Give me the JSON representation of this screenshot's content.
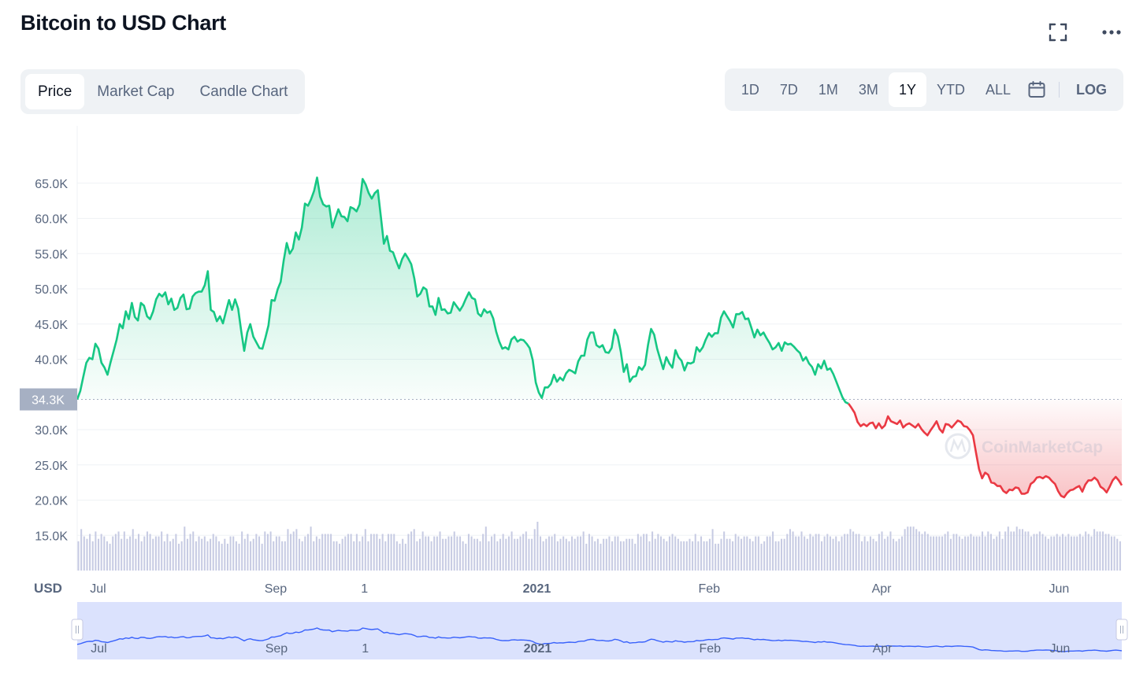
{
  "header": {
    "title": "Bitcoin to USD Chart",
    "fullscreen_icon": "fullscreen-icon",
    "more_icon": "more-dots-icon"
  },
  "tabs": [
    {
      "label": "Price",
      "active": true
    },
    {
      "label": "Market Cap",
      "active": false
    },
    {
      "label": "Candle Chart",
      "active": false
    }
  ],
  "ranges": {
    "items": [
      {
        "label": "1D",
        "active": false
      },
      {
        "label": "7D",
        "active": false
      },
      {
        "label": "1M",
        "active": false
      },
      {
        "label": "3M",
        "active": false
      },
      {
        "label": "1Y",
        "active": true
      },
      {
        "label": "YTD",
        "active": false
      },
      {
        "label": "ALL",
        "active": false
      }
    ],
    "calendar_icon": "calendar-icon",
    "log_label": "LOG"
  },
  "chart_data": {
    "type": "area",
    "ylim": [
      10000,
      70000
    ],
    "y_ticks": [
      {
        "value": 65000,
        "label": "65.0K"
      },
      {
        "value": 60000,
        "label": "60.0K"
      },
      {
        "value": 55000,
        "label": "55.0K"
      },
      {
        "value": 50000,
        "label": "50.0K"
      },
      {
        "value": 45000,
        "label": "45.0K"
      },
      {
        "value": 40000,
        "label": "40.0K"
      },
      {
        "value": 30000,
        "label": "30.0K"
      },
      {
        "value": 25000,
        "label": "25.0K"
      },
      {
        "value": 20000,
        "label": "20.0K"
      },
      {
        "value": 15000,
        "label": "15.0K"
      }
    ],
    "x_ticks": [
      {
        "t": 0.02,
        "label": "Jul",
        "bold": false
      },
      {
        "t": 0.19,
        "label": "Sep",
        "bold": false
      },
      {
        "t": 0.275,
        "label": "1",
        "bold": false
      },
      {
        "t": 0.44,
        "label": "2021",
        "bold": true
      },
      {
        "t": 0.605,
        "label": "Feb",
        "bold": false
      },
      {
        "t": 0.77,
        "label": "Apr",
        "bold": false
      },
      {
        "t": 0.94,
        "label": "Jun",
        "bold": false
      }
    ],
    "y_unit_label": "USD",
    "baseline": {
      "value": 34300,
      "label": "34.3K"
    },
    "watermark": "CoinMarketCap",
    "colors": {
      "up": "#16c784",
      "down": "#ea3943",
      "volume": "#c7cbe3",
      "navigator_line": "#3861fb",
      "navigator_fill": "#dbe2fd",
      "grid": "#eff2f5",
      "axis_text": "#58667e"
    },
    "series": [
      {
        "values": [
          34300,
          35500,
          37500,
          39500,
          40200,
          40000,
          42200,
          41500,
          39500,
          38800,
          37800,
          39600,
          41200,
          42800,
          45000,
          44400,
          46800,
          45700,
          48000,
          46000,
          45500,
          48000,
          47600,
          46100,
          45700,
          46800,
          48500,
          49300,
          48900,
          49500,
          47800,
          48600,
          47000,
          47300,
          48700,
          49200,
          47100,
          47200,
          48900,
          49400,
          49600,
          49600,
          50500,
          52500,
          47000,
          46700,
          45400,
          46100,
          45100,
          46800,
          48400,
          47000,
          48500,
          47200,
          44000,
          41200,
          43800,
          45000,
          43200,
          42400,
          41600,
          41500,
          43100,
          44800,
          48400,
          48300,
          49900,
          51000,
          54000,
          56500,
          55000,
          55700,
          58000,
          57000,
          58700,
          62100,
          61800,
          62700,
          63900,
          65800,
          63100,
          62000,
          61700,
          61800,
          58700,
          60000,
          61300,
          60300,
          60200,
          59600,
          61600,
          61400,
          61000,
          62000,
          65600,
          64800,
          63600,
          62800,
          63600,
          64000,
          60200,
          56400,
          57500,
          55400,
          55200,
          54000,
          52900,
          54200,
          55000,
          54300,
          53500,
          51500,
          48900,
          49300,
          50200,
          49900,
          47500,
          47500,
          46300,
          48700,
          47000,
          47100,
          46500,
          46600,
          48100,
          47500,
          46900,
          47600,
          48600,
          49500,
          48700,
          48500,
          46500,
          46100,
          47100,
          46600,
          46800,
          45800,
          43900,
          42500,
          41500,
          41700,
          41400,
          42800,
          43200,
          42500,
          42800,
          42700,
          42200,
          41600,
          39900,
          36700,
          35300,
          34500,
          36000,
          36000,
          36500,
          37800,
          36800,
          37400,
          37000,
          38000,
          38500,
          38300,
          38000,
          39700,
          40500,
          40500,
          42800,
          43800,
          43800,
          42000,
          41700,
          42000,
          41000,
          40900,
          41600,
          44200,
          43300,
          41100,
          38200,
          39300,
          36800,
          37500,
          37600,
          38900,
          38500,
          39200,
          42100,
          44300,
          43500,
          41500,
          40000,
          38600,
          40300,
          39400,
          38800,
          41300,
          40300,
          39800,
          38400,
          39500,
          39400,
          39600,
          41700,
          41100,
          41700,
          42800,
          43700,
          43200,
          43700,
          43700,
          45900,
          46800,
          46100,
          45400,
          44500,
          46400,
          46400,
          46700,
          45700,
          45800,
          44500,
          43100,
          44200,
          43400,
          43800,
          43000,
          42300,
          41400,
          41700,
          42300,
          41200,
          42400,
          42100,
          42200,
          41800,
          41300,
          40900,
          39800,
          40300,
          39400,
          38900,
          37800,
          39300,
          38700,
          39800,
          38500,
          38700,
          37900,
          36800,
          35700,
          34600,
          33900,
          33700
        ],
        "color": "#16c784"
      },
      {
        "values": [
          33700,
          33100,
          32400,
          31100,
          30500,
          30800,
          30500,
          30900,
          31000,
          30200,
          30900,
          30200,
          30600,
          31900,
          31200,
          31000,
          30800,
          31300,
          30300,
          30700,
          30900,
          30600,
          30300,
          30800,
          30100,
          29600,
          29200,
          29900,
          30500,
          31200,
          30100,
          29600,
          30800,
          30700,
          30300,
          30800,
          31300,
          31100,
          30500,
          30400,
          29900,
          29200,
          26700,
          24400,
          23100,
          23900,
          23600,
          22500,
          22400,
          22000,
          22000,
          21300,
          21000,
          21500,
          21400,
          21800,
          21700,
          20900,
          20900,
          21100,
          22300,
          22600,
          23200,
          23300,
          23100,
          23400,
          23200,
          22700,
          22300,
          21300,
          20600,
          20400,
          21000,
          21400,
          21500,
          21800,
          22000,
          21200,
          22200,
          22800,
          22800,
          23200,
          22800,
          21900,
          21600,
          21100,
          21900,
          22800,
          23300,
          22800,
          22100
        ],
        "color": "#ea3943"
      }
    ],
    "volume_values": [
      12,
      17,
      14,
      13,
      15,
      12,
      16,
      13,
      15,
      14,
      12,
      11,
      14,
      15,
      16,
      13,
      16,
      13,
      14,
      17,
      13,
      15,
      12,
      14,
      16,
      15,
      13,
      14,
      14,
      16,
      12,
      15,
      12,
      13,
      15,
      11,
      12,
      18,
      13,
      15,
      16,
      12,
      14,
      13,
      14,
      12,
      13,
      15,
      14,
      12,
      11,
      13,
      11,
      14,
      14,
      12,
      11,
      16,
      13,
      15,
      12,
      13,
      15,
      14,
      11,
      16,
      15,
      16,
      12,
      14,
      14,
      12,
      12,
      17,
      15,
      16,
      17,
      13,
      12,
      14,
      15,
      18,
      12,
      14,
      13,
      15,
      15,
      15,
      15,
      12,
      12,
      11,
      13,
      14,
      15,
      15,
      12,
      15,
      12,
      14,
      17,
      12,
      15,
      15,
      15,
      13,
      15,
      12,
      15,
      15,
      15,
      12,
      11,
      13,
      11,
      15,
      16,
      17,
      12,
      13,
      16,
      14,
      14,
      12,
      14,
      14,
      16,
      13,
      13,
      14,
      14,
      16,
      14,
      14,
      12,
      11,
      15,
      14,
      13,
      13,
      12,
      15,
      18,
      12,
      14,
      15,
      12,
      13,
      15,
      13,
      14,
      16,
      13,
      13,
      14,
      15,
      16,
      13,
      13,
      17,
      20,
      14,
      12,
      13,
      14,
      14,
      15,
      12,
      13,
      14,
      13,
      12,
      14,
      13,
      14,
      14,
      16,
      11,
      15,
      14,
      12,
      13,
      11,
      13,
      13,
      14,
      12,
      14,
      14,
      12,
      12,
      13,
      13,
      13,
      11,
      15,
      14,
      15,
      15,
      12,
      16,
      13,
      15,
      14,
      13,
      12,
      14,
      15,
      14,
      13,
      12,
      12,
      12,
      13,
      12,
      15,
      12,
      14,
      12,
      12,
      13,
      17,
      11,
      11,
      13,
      16,
      13,
      13,
      12,
      15,
      14,
      13,
      14,
      14,
      13,
      12,
      14,
      14,
      11,
      12,
      14,
      14,
      16,
      12,
      12,
      13,
      13,
      15,
      17,
      16,
      14,
      14,
      16,
      14,
      13,
      15,
      14,
      15,
      15,
      12,
      14,
      15,
      14,
      13,
      14,
      12,
      14,
      15,
      15,
      17,
      16,
      15,
      15,
      12,
      14,
      12,
      14,
      13,
      12,
      15,
      16,
      13,
      14,
      16,
      13,
      12,
      13,
      14,
      17,
      18,
      18,
      18,
      17,
      16,
      15,
      16,
      15,
      14,
      14,
      14,
      14,
      14,
      15,
      16,
      13,
      15,
      15,
      14,
      13,
      14,
      14,
      15,
      14,
      14,
      14,
      16,
      14,
      16,
      15,
      13,
      14,
      16,
      13,
      16,
      18,
      16,
      16,
      18,
      17,
      17,
      16,
      16,
      14,
      15,
      15,
      16,
      15,
      14,
      13,
      14,
      14,
      15,
      14,
      15,
      14,
      15,
      14,
      14,
      14,
      15,
      14,
      16,
      15,
      14,
      17,
      16,
      16,
      16,
      15,
      15,
      14,
      14,
      13,
      12
    ]
  }
}
